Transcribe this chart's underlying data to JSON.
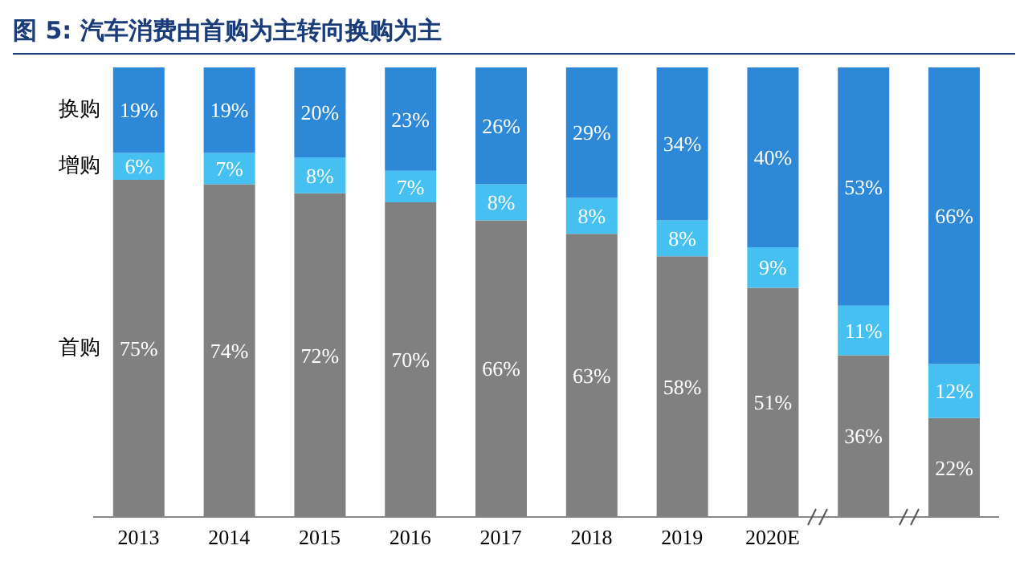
{
  "chart_data": {
    "type": "bar",
    "stacked": true,
    "title": "图 5: 汽车消费由首购为主转向换购为主",
    "categories": [
      "2013",
      "2014",
      "2015",
      "2016",
      "2017",
      "2018",
      "2019",
      "2020E",
      null,
      null
    ],
    "series": [
      {
        "name": "首购",
        "color": "#808080",
        "values": [
          75,
          74,
          72,
          70,
          66,
          63,
          58,
          51,
          36,
          22
        ],
        "value_labels": [
          "75%",
          "74%",
          "72%",
          "70%",
          "66%",
          "63%",
          "58%",
          "51%",
          "36%",
          "22%"
        ]
      },
      {
        "name": "增购",
        "color": "#45c0f0",
        "values": [
          6,
          7,
          8,
          7,
          8,
          8,
          8,
          9,
          11,
          12
        ],
        "value_labels": [
          "6%",
          "7%",
          "8%",
          "7%",
          "8%",
          "8%",
          "8%",
          "9%",
          "11%",
          "12%"
        ]
      },
      {
        "name": "换购",
        "color": "#2e88d8",
        "values": [
          19,
          19,
          20,
          23,
          26,
          29,
          34,
          40,
          53,
          66
        ],
        "value_labels": [
          "19%",
          "19%",
          "20%",
          "23%",
          "26%",
          "29%",
          "34%",
          "40%",
          "53%",
          "66%"
        ]
      }
    ]
  }
}
